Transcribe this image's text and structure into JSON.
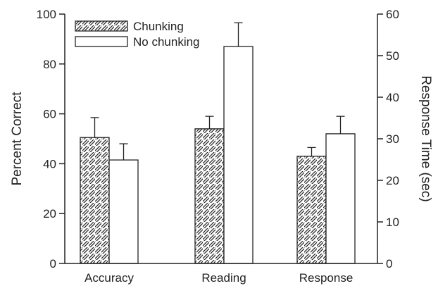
{
  "chart_data": {
    "type": "bar",
    "categories": [
      "Accuracy",
      "Reading",
      "Response"
    ],
    "series": [
      {
        "name": "Chunking",
        "pattern": "diagonal-hatch",
        "axis": "left",
        "values": [
          50.5,
          54,
          43
        ],
        "error_upper": [
          58.5,
          59,
          46.5
        ]
      },
      {
        "name": "No chunking",
        "pattern": "plain",
        "axis": "left",
        "values": [
          41.5,
          87,
          52
        ],
        "error_upper": [
          48,
          96.5,
          59
        ]
      }
    ],
    "ylabel": "Percent Correct",
    "ylim": [
      0,
      100
    ],
    "yticks": [
      "0",
      "20",
      "40",
      "60",
      "80",
      "100"
    ],
    "y2label": "Response Time (sec)",
    "y2lim": [
      0,
      60
    ],
    "y2ticks": [
      "0",
      "10",
      "20",
      "30",
      "40",
      "50",
      "60"
    ],
    "legend_position": "top-left",
    "grid": false,
    "colors": {
      "bar_stroke": "#222222",
      "bar_fill": "#ffffff",
      "axis": "#222222"
    }
  }
}
